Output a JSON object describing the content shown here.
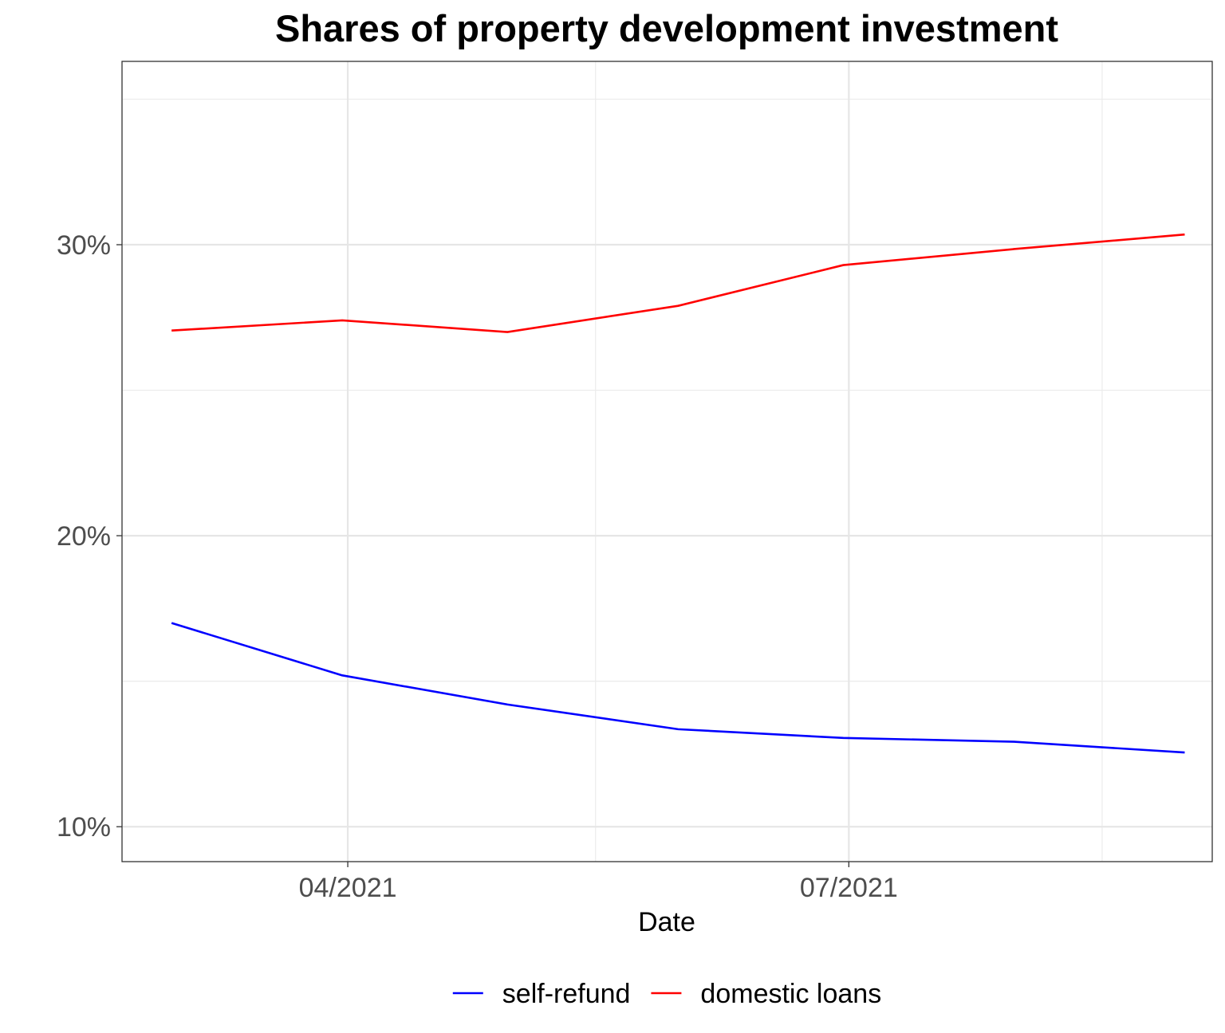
{
  "chart_data": {
    "type": "line",
    "title": "Shares of property development investment",
    "xlabel": "Date",
    "ylabel": "",
    "x": [
      "2021-02-28",
      "2021-03-31",
      "2021-04-30",
      "2021-05-31",
      "2021-06-30",
      "2021-07-31",
      "2021-08-31"
    ],
    "series": [
      {
        "name": "self-refund",
        "color": "#0000ff",
        "values": [
          17.0,
          15.2,
          14.2,
          13.35,
          13.05,
          12.92,
          12.55
        ]
      },
      {
        "name": "domestic loans",
        "color": "#ff0000",
        "values": [
          27.05,
          27.4,
          27.0,
          27.9,
          29.3,
          29.85,
          30.35
        ]
      }
    ],
    "xlim": [
      "2021-02-19",
      "2021-09-05"
    ],
    "ylim": [
      8.8,
      36.3
    ],
    "x_ticks": [
      {
        "date": "2021-04-01",
        "label": "04/2021"
      },
      {
        "date": "2021-07-01",
        "label": "07/2021"
      }
    ],
    "x_minor_gridlines": [
      "2021-05-16",
      "2021-08-16"
    ],
    "y_ticks": [
      {
        "value": 10,
        "label": "10%"
      },
      {
        "value": 20,
        "label": "20%"
      },
      {
        "value": 30,
        "label": "30%"
      }
    ],
    "y_minor_gridlines": [
      15,
      25,
      35
    ],
    "grid": true,
    "legend_position": "bottom"
  }
}
